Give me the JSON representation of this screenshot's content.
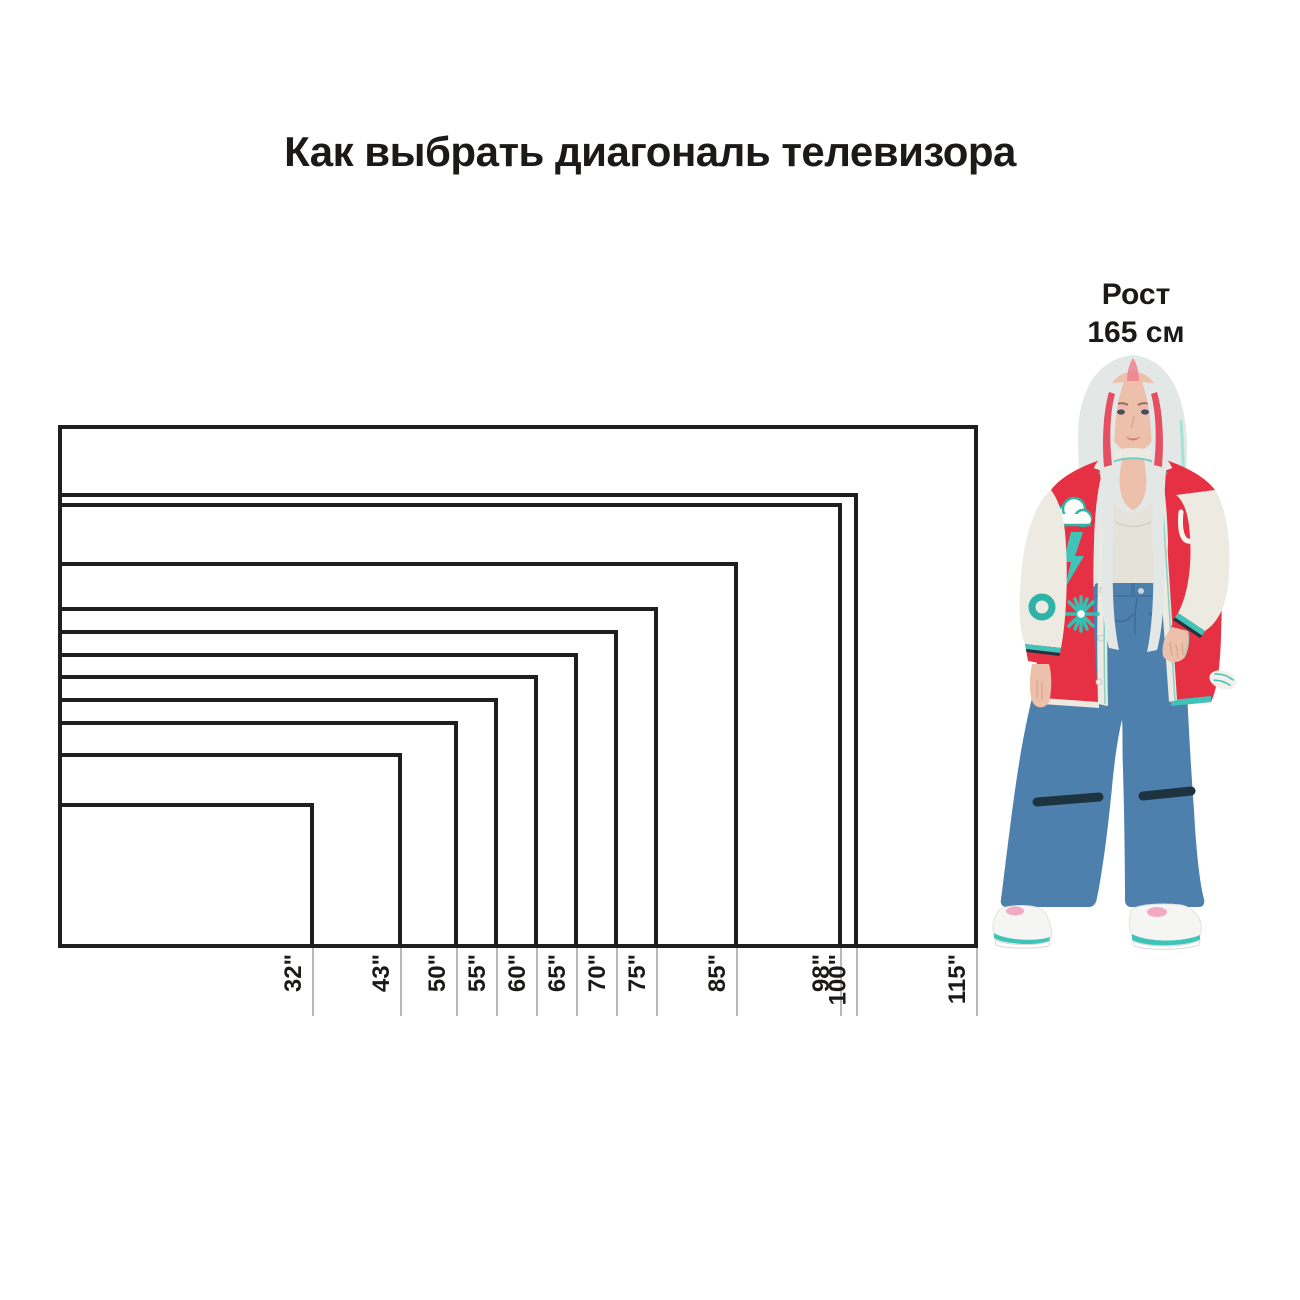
{
  "page": {
    "background": "#ffffff",
    "title": "Как выбрать диагональ телевизора"
  },
  "person": {
    "height_label": [
      "Рост",
      "165 см"
    ],
    "description": "Женщина ростом 165 см для сравнения масштаба экранов"
  },
  "chart_data": {
    "type": "nested-rectangles",
    "title": "Как выбрать диагональ телевизора",
    "unit": "дюймы (диагональ экрана)",
    "aspect_ratio": "16:9",
    "sizes_inches": [
      32,
      43,
      50,
      55,
      60,
      65,
      70,
      75,
      85,
      98,
      100,
      115
    ],
    "tick_labels": [
      "32\"",
      "43\"",
      "50\"",
      "55\"",
      "60\"",
      "65\"",
      "70\"",
      "75\"",
      "85\"",
      "98\"",
      "100\"",
      "115\""
    ],
    "reference": {
      "label": "Рост 165 см",
      "height_cm": 165
    },
    "layout": {
      "shared_corner": "bottom-left",
      "labels_rotated_90": true,
      "grid": false,
      "tick_lines": "gray, below bottom edge at each rectangle right edge"
    }
  },
  "colors": {
    "text": "#1b1a19",
    "rect_border": "#1f1f1f",
    "tick_line": "#b8b8b8",
    "jacket_red": "#e63145",
    "sleeve_cream": "#eceae1",
    "patch_teal": "#3ec4b8",
    "denim_blue": "#4d80ad",
    "hair_silver": "#e3e7e6",
    "hair_red_streak": "#e6324a"
  }
}
